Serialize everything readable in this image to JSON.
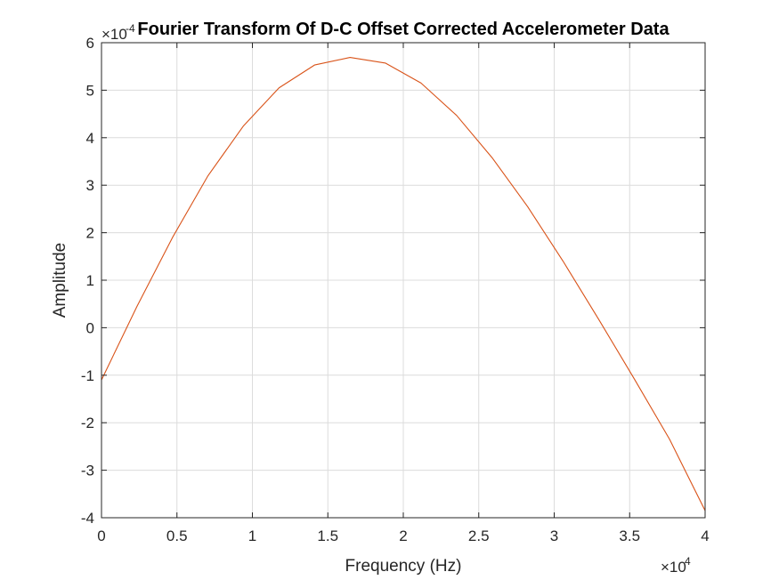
{
  "chart_data": {
    "type": "line",
    "title": "Fourier Transform Of D-C Offset Corrected Accelerometer Data",
    "xlabel": "Frequency (Hz)",
    "ylabel": "Amplitude",
    "xlim": [
      0,
      40000
    ],
    "ylim": [
      -4,
      6
    ],
    "x_exponent_label": "×10",
    "x_exponent_power": "4",
    "y_exponent_label": "×10",
    "y_exponent_power": "-4",
    "x_tick_labels": [
      "0",
      "0.5",
      "1",
      "1.5",
      "2",
      "2.5",
      "3",
      "3.5",
      "4"
    ],
    "y_tick_labels": [
      "-4",
      "-3",
      "-2",
      "-1",
      "0",
      "1",
      "2",
      "3",
      "4",
      "5",
      "6"
    ],
    "grid": true,
    "line_color": "#d95319",
    "series": [
      {
        "x": [
          0,
          2353,
          4706,
          7059,
          9412,
          11765,
          14118,
          16471,
          18824,
          21176,
          23529,
          25882,
          28235,
          30588,
          32941,
          35294,
          37647,
          40000
        ],
        "y": [
          -1.1,
          0.45,
          1.9,
          3.2,
          4.25,
          5.05,
          5.53,
          5.69,
          5.57,
          5.15,
          4.47,
          3.58,
          2.55,
          1.4,
          0.18,
          -1.07,
          -2.35,
          -3.85
        ]
      }
    ]
  }
}
